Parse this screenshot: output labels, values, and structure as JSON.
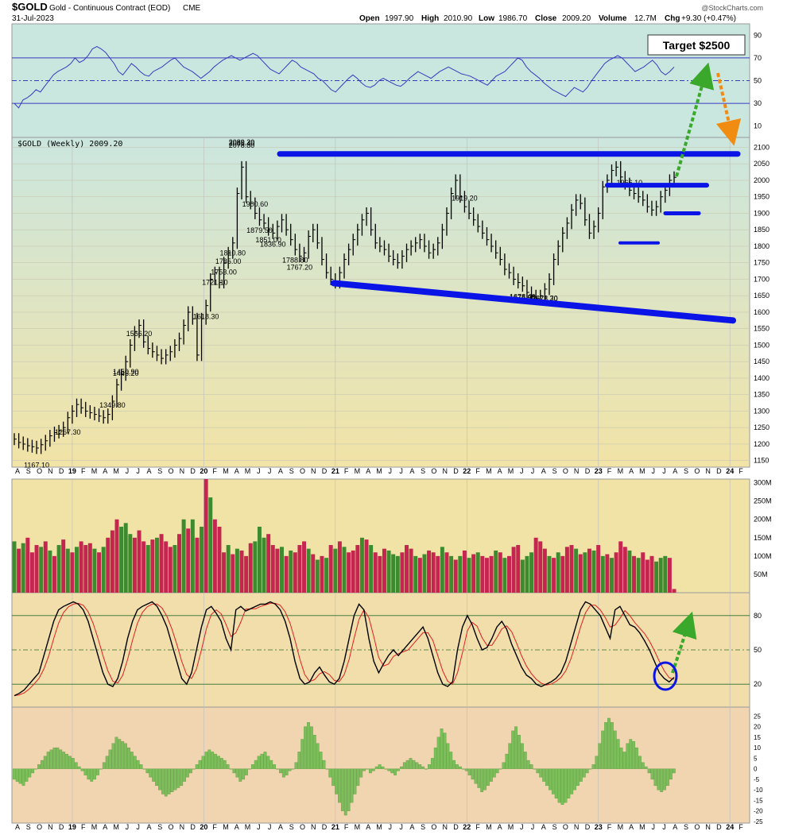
{
  "header": {
    "symbol": "$GOLD",
    "description": "Gold - Continuous Contract (EOD)",
    "exchange": "CME",
    "date": "31-Jul-2023",
    "open_label": "Open",
    "open": "1997.90",
    "high_label": "High",
    "high": "2010.90",
    "low_label": "Low",
    "low": "1986.70",
    "close_label": "Close",
    "close": "2009.20",
    "volume_label": "Volume",
    "volume": "12.7M",
    "chg_label": "Chg",
    "chg": "+9.30 (+0.47%)",
    "watermark": "@StockCharts.com"
  },
  "target_box": "Target $2500",
  "price_panel_label": "$GOLD (Weekly) 2009.20",
  "colors": {
    "price_bg_top": "#cde8dc",
    "price_bg_bottom": "#f0e2a8",
    "rsi_bg": "#c8e6dc",
    "volume_bg": "#f0e2a8",
    "stoch_bg": "#f1dfae",
    "macd_bg": "#f0d4b0",
    "trendline": "#0a14e6",
    "up_vol": "#3e8a2e",
    "down_vol": "#c4264f",
    "arrow_green": "#3aa82a",
    "arrow_orange": "#f08c12",
    "stoch_fast": "#000000",
    "stoch_slow": "#e02020",
    "hist": "#7cbf5a"
  },
  "chart_data": [
    {
      "type": "line",
      "title": "RSI",
      "ylim": [
        0,
        100
      ],
      "ticks": [
        "90",
        "70",
        "50",
        "30",
        "10"
      ],
      "tick_values": [
        90,
        70,
        50,
        30,
        10
      ],
      "levels": [
        70,
        50,
        30
      ],
      "values": [
        30,
        26,
        33,
        35,
        38,
        42,
        40,
        45,
        50,
        55,
        58,
        60,
        62,
        65,
        70,
        66,
        68,
        72,
        78,
        80,
        78,
        75,
        70,
        65,
        58,
        55,
        60,
        65,
        62,
        58,
        55,
        54,
        58,
        60,
        62,
        65,
        68,
        70,
        66,
        62,
        60,
        58,
        55,
        52,
        55,
        58,
        62,
        65,
        68,
        70,
        72,
        70,
        68,
        70,
        72,
        74,
        72,
        68,
        64,
        60,
        58,
        56,
        60,
        64,
        68,
        66,
        62,
        60,
        58,
        56,
        52,
        50,
        46,
        42,
        40,
        44,
        48,
        52,
        55,
        52,
        48,
        45,
        44,
        46,
        50,
        52,
        50,
        48,
        46,
        45,
        48,
        52,
        55,
        58,
        56,
        54,
        52,
        55,
        58,
        60,
        62,
        60,
        58,
        56,
        55,
        54,
        52,
        50,
        48,
        46,
        50,
        54,
        56,
        58,
        62,
        66,
        70,
        68,
        62,
        58,
        55,
        52,
        48,
        45,
        42,
        40,
        38,
        36,
        40,
        44,
        42,
        40,
        44,
        50,
        55,
        60,
        65,
        68,
        70,
        72,
        70,
        66,
        62,
        58,
        60,
        62,
        65,
        68,
        64,
        58,
        55,
        58,
        62
      ]
    },
    {
      "type": "line",
      "title": "$GOLD (Weekly) 2009.20",
      "ylim": [
        1130,
        2130
      ],
      "yticks": [
        "2100",
        "2050",
        "2000",
        "1950",
        "1900",
        "1850",
        "1800",
        "1750",
        "1700",
        "1650",
        "1600",
        "1550",
        "1500",
        "1450",
        "1400",
        "1350",
        "1300",
        "1250",
        "1200",
        "1150"
      ],
      "ytick_values": [
        2100,
        2050,
        2000,
        1950,
        1900,
        1850,
        1800,
        1750,
        1700,
        1650,
        1600,
        1550,
        1500,
        1450,
        1400,
        1350,
        1300,
        1250,
        1200,
        1150
      ],
      "x_months": [
        "A",
        "S",
        "O",
        "N",
        "D",
        "19",
        "F",
        "M",
        "A",
        "M",
        "J",
        "J",
        "A",
        "S",
        "O",
        "N",
        "D",
        "20",
        "F",
        "M",
        "A",
        "M",
        "J",
        "J",
        "A",
        "S",
        "O",
        "N",
        "D",
        "21",
        "F",
        "M",
        "A",
        "M",
        "J",
        "J",
        "A",
        "S",
        "O",
        "N",
        "D",
        "22",
        "F",
        "M",
        "A",
        "M",
        "J",
        "J",
        "A",
        "S",
        "O",
        "N",
        "D",
        "23",
        "F",
        "M",
        "A",
        "M",
        "J",
        "J",
        "A",
        "S",
        "O",
        "N",
        "D",
        "24",
        "F"
      ],
      "closes": [
        1215,
        1205,
        1200,
        1195,
        1192,
        1188,
        1198,
        1210,
        1225,
        1235,
        1240,
        1250,
        1280,
        1300,
        1320,
        1310,
        1300,
        1295,
        1290,
        1285,
        1280,
        1290,
        1330,
        1380,
        1410,
        1450,
        1500,
        1540,
        1560,
        1510,
        1490,
        1480,
        1470,
        1460,
        1470,
        1480,
        1500,
        1520,
        1560,
        1600,
        1580,
        1470,
        1580,
        1620,
        1700,
        1720,
        1690,
        1750,
        1780,
        1810,
        1960,
        2040,
        1950,
        1930,
        1900,
        1880,
        1870,
        1850,
        1840,
        1860,
        1880,
        1850,
        1820,
        1790,
        1770,
        1780,
        1830,
        1850,
        1810,
        1760,
        1720,
        1700,
        1690,
        1720,
        1760,
        1790,
        1820,
        1850,
        1880,
        1900,
        1850,
        1810,
        1800,
        1790,
        1770,
        1760,
        1750,
        1770,
        1790,
        1800,
        1810,
        1820,
        1800,
        1780,
        1790,
        1810,
        1850,
        1900,
        1960,
        2000,
        1950,
        1920,
        1900,
        1880,
        1860,
        1840,
        1820,
        1800,
        1780,
        1760,
        1730,
        1720,
        1700,
        1690,
        1680,
        1660,
        1650,
        1640,
        1650,
        1670,
        1700,
        1760,
        1800,
        1840,
        1870,
        1910,
        1940,
        1930,
        1880,
        1840,
        1860,
        1900,
        1980,
        2000,
        2030,
        2040,
        2010,
        1990,
        1970,
        1960,
        1950,
        1940,
        1920,
        1910,
        1920,
        1950,
        1970,
        2000,
        2009
      ],
      "annotations": [
        {
          "label": "1167.10",
          "price": 1167.1
        },
        {
          "label": "1349.80",
          "price": 1349.8
        },
        {
          "label": "1267.30",
          "price": 1267.3
        },
        {
          "label": "1566.20",
          "price": 1566.2
        },
        {
          "label": "1446.20",
          "price": 1446.2
        },
        {
          "label": "1450.90",
          "price": 1450.9
        },
        {
          "label": "1788.80",
          "price": 1788.8
        },
        {
          "label": "1671.70",
          "price": 1671.7
        },
        {
          "label": "2089.20",
          "price": 2089.2
        },
        {
          "label": "1966.10",
          "price": 1966.1
        },
        {
          "label": "1851.00",
          "price": 1851.0
        },
        {
          "label": "1767.20",
          "price": 1767.2
        },
        {
          "label": "1673.30",
          "price": 1673.3
        },
        {
          "label": "1919.20",
          "price": 1919.2
        },
        {
          "label": "1836.90",
          "price": 1836.9
        },
        {
          "label": "1721.10",
          "price": 1721.1
        },
        {
          "label": "1879.50",
          "price": 1879.5
        },
        {
          "label": "1753.00",
          "price": 1753.0
        },
        {
          "label": "1675.90",
          "price": 1675.9
        },
        {
          "label": "2078.80",
          "price": 2078.8
        },
        {
          "label": "1785.00",
          "price": 1785.0
        },
        {
          "label": "1678.40",
          "price": 1678.4
        },
        {
          "label": "1618.30",
          "price": 1618.3
        },
        {
          "label": "2085.40",
          "price": 2085.4
        },
        {
          "label": "1810.80",
          "price": 1810.8
        },
        {
          "label": "1900.60",
          "price": 1900.6
        }
      ],
      "trendlines": [
        {
          "name": "resistance",
          "from_price": 2080,
          "to_price": 2080
        },
        {
          "name": "support",
          "from_price": 1688,
          "to_price": 1570
        },
        {
          "name": "level-1985",
          "price": 1985
        },
        {
          "name": "level-1900",
          "price": 1900
        },
        {
          "name": "level-1810",
          "price": 1810
        }
      ]
    },
    {
      "type": "bar",
      "title": "Volume",
      "ylim": [
        0,
        310
      ],
      "yticks": [
        "300M",
        "250M",
        "200M",
        "150M",
        "100M",
        "50M"
      ],
      "ytick_values": [
        300,
        250,
        200,
        150,
        100,
        50
      ],
      "values": [
        140,
        120,
        135,
        150,
        110,
        130,
        125,
        140,
        115,
        100,
        130,
        145,
        120,
        110,
        125,
        140,
        130,
        135,
        120,
        110,
        125,
        150,
        170,
        200,
        180,
        190,
        160,
        150,
        170,
        140,
        130,
        145,
        150,
        160,
        140,
        125,
        130,
        160,
        200,
        175,
        200,
        150,
        180,
        310,
        260,
        200,
        180,
        110,
        130,
        105,
        120,
        115,
        100,
        135,
        140,
        180,
        150,
        160,
        130,
        120,
        125,
        100,
        115,
        110,
        130,
        140,
        120,
        105,
        90,
        100,
        95,
        130,
        120,
        140,
        125,
        110,
        115,
        130,
        150,
        145,
        130,
        110,
        100,
        120,
        115,
        105,
        100,
        110,
        130,
        120,
        100,
        95,
        105,
        115,
        110,
        100,
        125,
        110,
        100,
        90,
        100,
        115,
        95,
        105,
        110,
        100,
        95,
        100,
        115,
        110,
        95,
        100,
        125,
        130,
        90,
        100,
        110,
        150,
        140,
        120,
        100,
        95,
        110,
        100,
        125,
        130,
        120,
        105,
        110,
        120,
        115,
        130,
        100,
        105,
        95,
        110,
        140,
        125,
        115,
        100,
        95,
        110,
        90,
        100,
        85,
        95,
        100,
        95,
        10
      ]
    },
    {
      "type": "line",
      "title": "Stochastics",
      "ylim": [
        0,
        100
      ],
      "yticks": [
        "80",
        "50",
        "20"
      ],
      "ytick_values": [
        80,
        50,
        20
      ],
      "fast": [
        10,
        12,
        15,
        20,
        25,
        30,
        45,
        60,
        75,
        85,
        88,
        90,
        92,
        90,
        85,
        75,
        60,
        45,
        30,
        20,
        18,
        25,
        40,
        60,
        75,
        85,
        88,
        90,
        92,
        88,
        80,
        70,
        55,
        40,
        25,
        20,
        30,
        50,
        70,
        85,
        88,
        82,
        75,
        60,
        50,
        85,
        88,
        84,
        86,
        88,
        90,
        90,
        92,
        90,
        85,
        75,
        60,
        40,
        25,
        20,
        22,
        30,
        35,
        28,
        22,
        20,
        25,
        40,
        60,
        80,
        90,
        85,
        60,
        40,
        30,
        38,
        45,
        50,
        45,
        50,
        55,
        60,
        65,
        70,
        60,
        45,
        30,
        20,
        18,
        22,
        50,
        70,
        80,
        72,
        60,
        50,
        52,
        60,
        70,
        75,
        68,
        55,
        45,
        35,
        28,
        25,
        20,
        18,
        20,
        22,
        25,
        30,
        40,
        55,
        70,
        85,
        92,
        90,
        85,
        80,
        70,
        60,
        85,
        88,
        80,
        72,
        70,
        65,
        58,
        50,
        40,
        30,
        25,
        22,
        26
      ]
    },
    {
      "type": "bar",
      "title": "MACD Histogram",
      "ylim": [
        -25,
        27
      ],
      "yticks": [
        "25",
        "20",
        "15",
        "10",
        "5",
        "0",
        "-5",
        "-10",
        "-15",
        "-20",
        "-25"
      ],
      "ytick_values": [
        25,
        20,
        15,
        10,
        5,
        0,
        -5,
        -10,
        -15,
        -20,
        -25
      ],
      "values": [
        -5,
        -6,
        -7,
        -8,
        -6,
        -4,
        -2,
        0,
        2,
        4,
        6,
        8,
        9,
        10,
        10,
        9,
        8,
        7,
        6,
        5,
        3,
        1,
        -1,
        -3,
        -5,
        -6,
        -5,
        -3,
        0,
        3,
        6,
        9,
        12,
        15,
        14,
        13,
        12,
        10,
        8,
        6,
        4,
        2,
        0,
        -2,
        -4,
        -6,
        -8,
        -10,
        -12,
        -13,
        -12,
        -11,
        -10,
        -9,
        -8,
        -6,
        -4,
        -2,
        0,
        2,
        4,
        6,
        8,
        9,
        8,
        7,
        6,
        5,
        4,
        2,
        0,
        -2,
        -4,
        -6,
        -5,
        -3,
        0,
        2,
        4,
        6,
        7,
        8,
        6,
        4,
        2,
        0,
        -2,
        -4,
        -3,
        -1,
        0,
        3,
        8,
        14,
        20,
        22,
        20,
        16,
        12,
        8,
        4,
        0,
        -4,
        -8,
        -12,
        -16,
        -20,
        -22,
        -20,
        -16,
        -12,
        -8,
        -4,
        -1,
        0,
        -2,
        -1,
        1,
        2,
        1,
        0,
        -1,
        -2,
        -3,
        -1,
        1,
        3,
        4,
        5,
        4,
        3,
        2,
        1,
        0,
        2,
        5,
        10,
        15,
        19,
        17,
        12,
        8,
        4,
        2,
        1,
        0,
        -1,
        -3,
        -5,
        -7,
        -9,
        -11,
        -10,
        -8,
        -6,
        -4,
        -2,
        0,
        3,
        7,
        12,
        18,
        20,
        16,
        12,
        8,
        4,
        2,
        0,
        -2,
        -4,
        -6,
        -8,
        -10,
        -12,
        -14,
        -16,
        -17,
        -16,
        -14,
        -12,
        -10,
        -8,
        -6,
        -4,
        -2,
        0,
        2,
        6,
        12,
        18,
        22,
        24,
        22,
        18,
        14,
        10,
        8,
        12,
        14,
        13,
        10,
        6,
        3,
        1,
        -2,
        -5,
        -8,
        -10,
        -11,
        -10,
        -8,
        -5,
        -2
      ]
    }
  ],
  "x_axis_months": [
    "A",
    "S",
    "O",
    "N",
    "D",
    "19",
    "F",
    "M",
    "A",
    "M",
    "J",
    "J",
    "A",
    "S",
    "O",
    "N",
    "D",
    "20",
    "F",
    "M",
    "A",
    "M",
    "J",
    "J",
    "A",
    "S",
    "O",
    "N",
    "D",
    "21",
    "F",
    "M",
    "A",
    "M",
    "J",
    "J",
    "A",
    "S",
    "O",
    "N",
    "D",
    "22",
    "F",
    "M",
    "A",
    "M",
    "J",
    "J",
    "A",
    "S",
    "O",
    "N",
    "D",
    "23",
    "F",
    "M",
    "A",
    "M",
    "J",
    "J",
    "A",
    "S",
    "O",
    "N",
    "D",
    "24",
    "F"
  ]
}
